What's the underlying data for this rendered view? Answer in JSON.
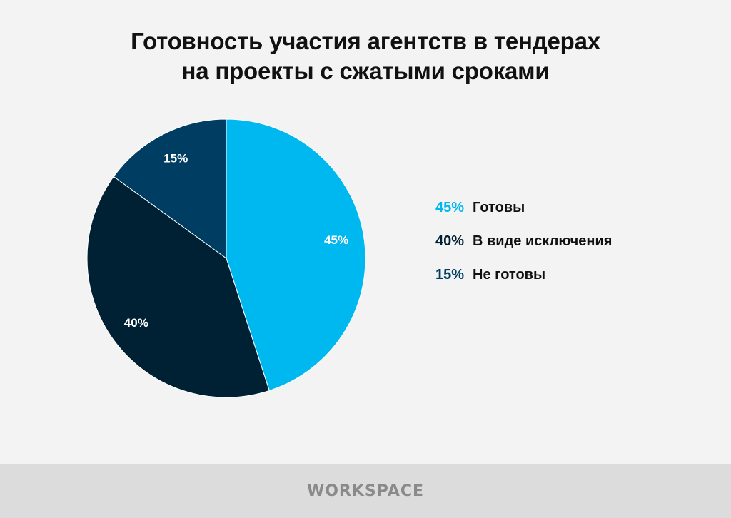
{
  "header": {
    "title_line1": "Готовность участия агентств в тендерах",
    "title_line2": "на проекты с сжатыми сроками"
  },
  "legend": [
    {
      "pct": "45%",
      "label": "Готовы",
      "color": "#00b8f0"
    },
    {
      "pct": "40%",
      "label": "В виде исключения",
      "color": "#002034"
    },
    {
      "pct": "15%",
      "label": "Не готовы",
      "color": "#003d62"
    }
  ],
  "chart_data": {
    "type": "pie",
    "title": "Готовность участия агентств в тендерах на проекты с сжатыми сроками",
    "slices": [
      {
        "label": "Готовы",
        "value": 45,
        "display": "45%",
        "color": "#00b8f0"
      },
      {
        "label": "В виде исключения",
        "value": 40,
        "display": "40%",
        "color": "#002034"
      },
      {
        "label": "Не готовы",
        "value": 15,
        "display": "15%",
        "color": "#003d62"
      }
    ],
    "start_angle": "12 o'clock",
    "direction": "clockwise",
    "legend_placement": "right",
    "data_labels": "inside"
  },
  "footer": {
    "brand": "WORKSPACE"
  }
}
